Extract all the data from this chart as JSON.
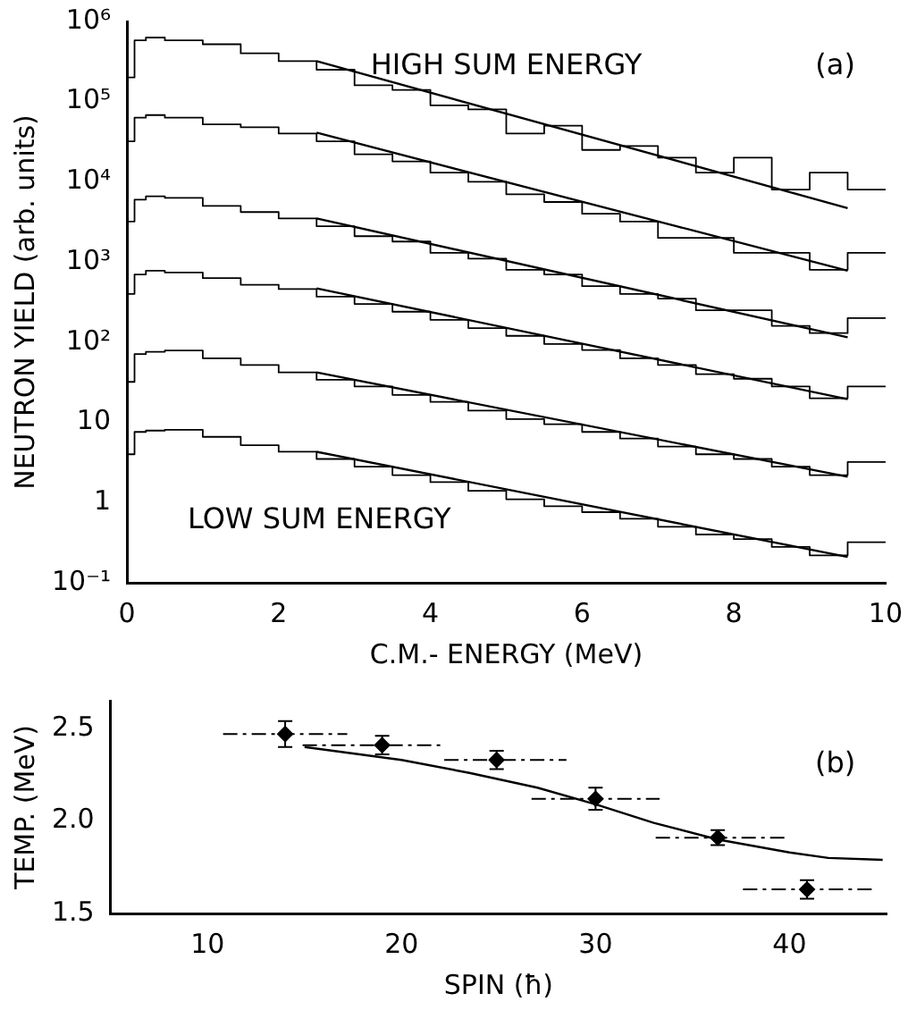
{
  "chart_data": [
    {
      "type": "step",
      "xlabel": "C.M.- ENERGY (MeV)",
      "ylabel": "NEUTRON YIELD (arb. units)",
      "log": "y",
      "xlim": [
        0,
        10
      ],
      "ylim": [
        0.1,
        1000000
      ],
      "xticks": [
        0,
        2,
        4,
        6,
        8,
        10
      ],
      "yticks": [
        {
          "value": 0.1,
          "label": "10⁻¹"
        },
        1,
        10,
        {
          "value": 100,
          "label": "10²"
        },
        {
          "value": 1000,
          "label": "10³"
        },
        {
          "value": 10000,
          "label": "10⁴"
        },
        {
          "value": 100000,
          "label": "10⁵"
        },
        {
          "value": 1000000,
          "label": "10⁶"
        }
      ],
      "annotations": [
        "HIGH SUM ENERGY",
        "(a)",
        "LOW SUM ENERGY"
      ],
      "x": [
        0,
        0.1,
        0.25,
        0.5,
        1,
        1.5,
        2,
        2.5,
        3,
        3.5,
        4,
        4.5,
        5,
        5.5,
        6,
        6.5,
        7,
        7.5,
        8,
        8.5,
        9,
        9.5,
        10
      ],
      "series": [
        {
          "color": "#000000",
          "values": [
            20000,
            200000,
            580000,
            630000,
            580000,
            520000,
            400000,
            320000,
            250000,
            160000,
            140000,
            90000,
            80000,
            40000,
            50000,
            25000,
            28000,
            20000,
            13000,
            20000,
            8000,
            13000,
            8000
          ]
        },
        {
          "type": "line",
          "color": "#000000",
          "x": [
            2.5,
            9.5
          ],
          "values": [
            320000,
            4700
          ]
        },
        {
          "color": "#000000",
          "values": [
            5000,
            32000,
            63000,
            68000,
            63000,
            52000,
            48000,
            40000,
            32000,
            22000,
            18000,
            13000,
            10000,
            7000,
            5600,
            4000,
            3200,
            2000,
            2000,
            1300,
            1300,
            800,
            1300
          ]
        },
        {
          "type": "line",
          "color": "#000000",
          "x": [
            2.5,
            9.5
          ],
          "values": [
            41000,
            780
          ]
        },
        {
          "color": "#000000",
          "values": [
            630,
            3200,
            6000,
            6600,
            6300,
            5000,
            4200,
            3500,
            2800,
            2100,
            1800,
            1300,
            1100,
            800,
            700,
            500,
            400,
            350,
            250,
            250,
            160,
            130,
            200
          ]
        },
        {
          "type": "line",
          "color": "#000000",
          "x": [
            2.5,
            9.5
          ],
          "values": [
            3500,
            115
          ]
        },
        {
          "color": "#000000",
          "values": [
            63,
            400,
            700,
            780,
            740,
            630,
            520,
            460,
            370,
            300,
            240,
            190,
            150,
            120,
            95,
            80,
            63,
            52,
            40,
            35,
            28,
            20,
            28
          ]
        },
        {
          "type": "line",
          "color": "#000000",
          "x": [
            2.5,
            9.5
          ],
          "values": [
            470,
            19.5
          ]
        },
        {
          "color": "#000000",
          "values": [
            6.3,
            32,
            71,
            76,
            79,
            63,
            52,
            42,
            34,
            28,
            22,
            18,
            14,
            11,
            9.5,
            7.6,
            6.3,
            5,
            4,
            3.5,
            2.8,
            2.2,
            3.2
          ]
        },
        {
          "type": "line",
          "color": "#000000",
          "x": [
            2.5,
            9.5
          ],
          "values": [
            42,
            2.1
          ]
        },
        {
          "color": "#000000",
          "values": [
            0.5,
            4,
            7.6,
            7.9,
            8.1,
            6.6,
            5.2,
            4.3,
            3.5,
            2.8,
            2.2,
            1.8,
            1.4,
            1.1,
            0.9,
            0.76,
            0.63,
            0.5,
            0.4,
            0.35,
            0.28,
            0.22,
            0.32
          ]
        },
        {
          "type": "line",
          "color": "#000000",
          "x": [
            2.5,
            9.5
          ],
          "values": [
            4.3,
            0.21
          ]
        }
      ]
    },
    {
      "type": "scatter",
      "xlabel": "SPIN (ħ)",
      "ylabel": "TEMP. (MeV)",
      "xlim": [
        5,
        45
      ],
      "ylim": [
        1.5,
        2.65
      ],
      "xticks": [
        10,
        20,
        30,
        40
      ],
      "yticks": [
        1.5,
        {
          "value": 2,
          "label": "2.0"
        },
        2.5
      ],
      "annotations": [
        "(b)"
      ],
      "series": [
        {
          "marker": "diamond",
          "color": "#000000",
          "x": [
            14,
            19,
            24.9,
            30,
            36.3,
            40.9
          ],
          "values": [
            2.47,
            2.41,
            2.33,
            2.12,
            1.91,
            1.63
          ],
          "errors": [
            0.07,
            0.05,
            0.05,
            0.06,
            0.04,
            0.05
          ],
          "xerrors": [
            [
              10.8,
              17.2
            ],
            [
              14.9,
              22.2
            ],
            [
              22.2,
              28.5
            ],
            [
              26.7,
              33.3
            ],
            [
              33.1,
              39.8
            ],
            [
              37.6,
              44.3
            ]
          ]
        },
        {
          "type": "line",
          "color": "#000000",
          "x": [
            15,
            20,
            23.5,
            27,
            30,
            33,
            36.3,
            40,
            42,
            44.8
          ],
          "values": [
            2.4,
            2.33,
            2.26,
            2.18,
            2.09,
            1.99,
            1.9,
            1.83,
            1.8,
            1.79
          ]
        }
      ]
    }
  ]
}
